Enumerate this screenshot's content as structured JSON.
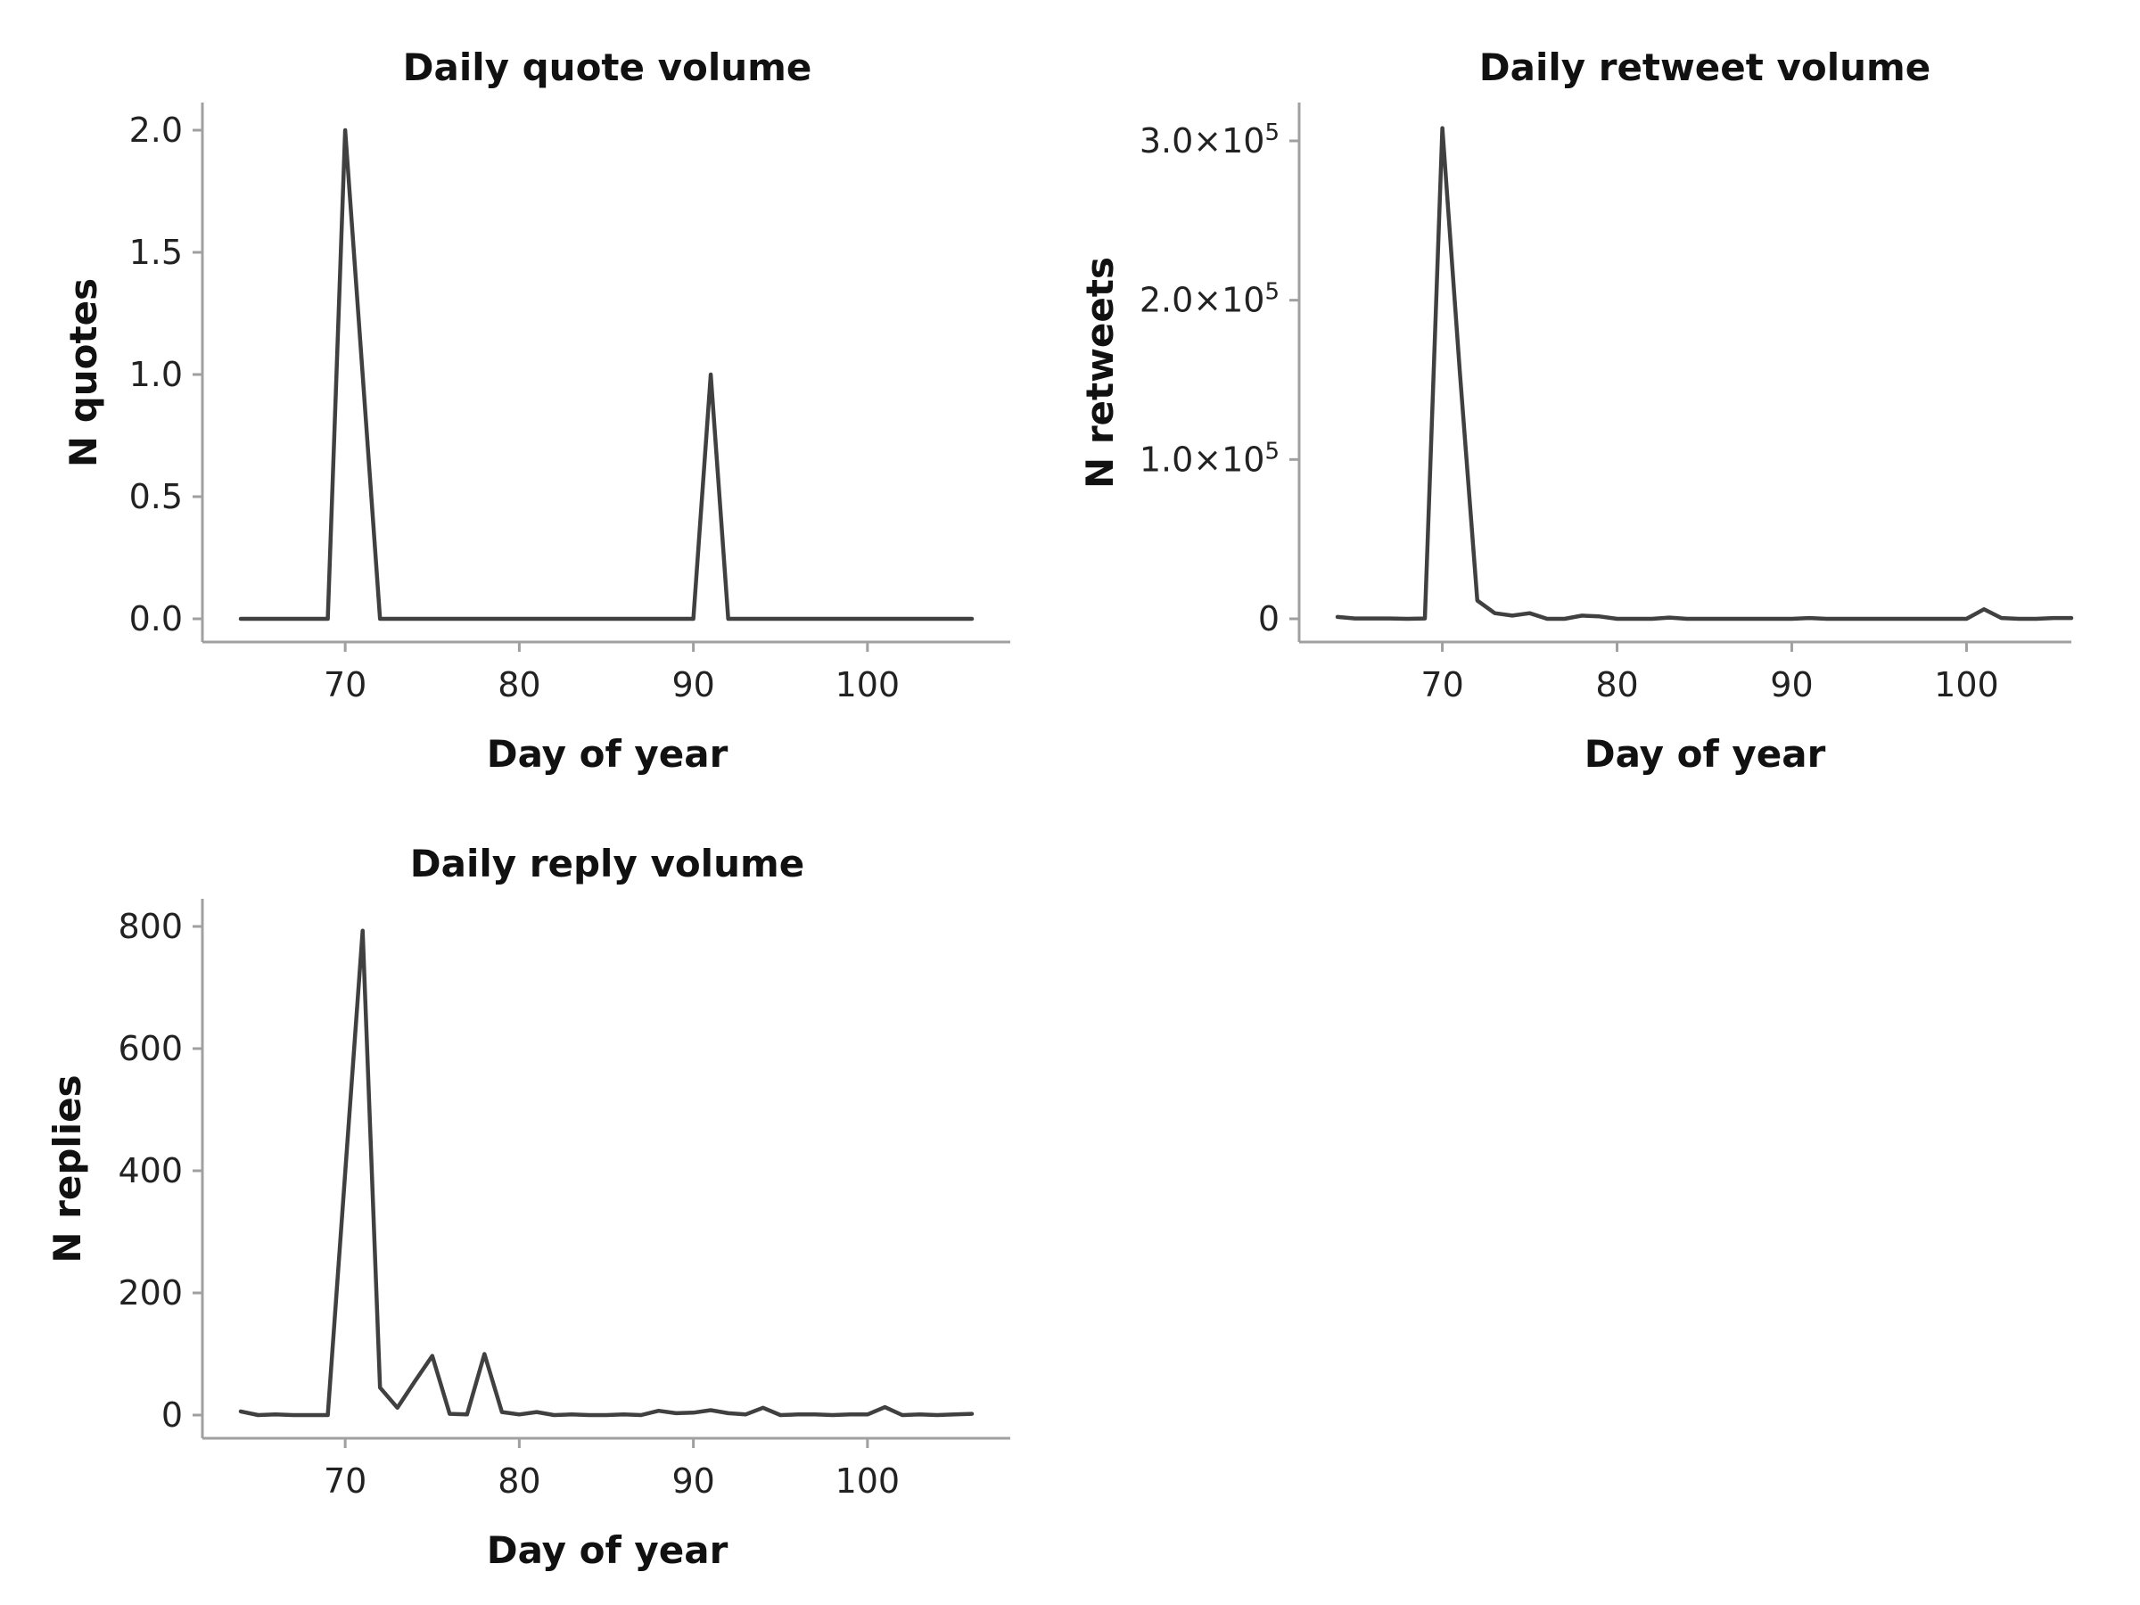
{
  "figure": {
    "background": "#ffffff",
    "line_color": "#404040",
    "axis_color": "#a0a0a0"
  },
  "chart_data": [
    {
      "id": "quotes",
      "type": "line",
      "title": "Daily quote volume",
      "xlabel": "Day of year",
      "ylabel": "N quotes",
      "xlim": [
        64,
        106
      ],
      "ylim": [
        0,
        2.0
      ],
      "xticks": [
        70,
        80,
        90,
        100
      ],
      "xtick_labels": [
        "70",
        "80",
        "90",
        "100"
      ],
      "yticks": [
        0,
        0.5,
        1.0,
        1.5,
        2.0
      ],
      "ytick_labels": [
        "0.0",
        "0.5",
        "1.0",
        "1.5",
        "2.0"
      ],
      "grid": false,
      "series": [
        {
          "x": [
            64,
            65,
            66,
            67,
            68,
            69,
            70,
            71,
            72,
            73,
            74,
            75,
            76,
            77,
            78,
            79,
            80,
            81,
            82,
            83,
            84,
            85,
            86,
            87,
            88,
            89,
            90,
            91,
            92,
            93,
            94,
            95,
            96,
            97,
            98,
            99,
            100,
            101,
            102,
            103,
            104,
            105,
            106
          ],
          "y": [
            0,
            0,
            0,
            0,
            0,
            0,
            2,
            1,
            0,
            0,
            0,
            0,
            0,
            0,
            0,
            0,
            0,
            0,
            0,
            0,
            0,
            0,
            0,
            0,
            0,
            0,
            0,
            1,
            0,
            0,
            0,
            0,
            0,
            0,
            0,
            0,
            0,
            0,
            0,
            0,
            0,
            0,
            0
          ]
        }
      ]
    },
    {
      "id": "retweets",
      "type": "line",
      "title": "Daily retweet volume",
      "xlabel": "Day of year",
      "ylabel": "N retweets",
      "xlim": [
        64,
        106
      ],
      "ylim": [
        0,
        300000
      ],
      "xticks": [
        70,
        80,
        90,
        100
      ],
      "xtick_labels": [
        "70",
        "80",
        "90",
        "100"
      ],
      "yticks": [
        0,
        100000,
        200000,
        300000
      ],
      "ytick_labels": [
        {
          "mantissa": "0",
          "exponent": ""
        },
        {
          "mantissa": "1.0×10",
          "exponent": "5"
        },
        {
          "mantissa": "2.0×10",
          "exponent": "5"
        },
        {
          "mantissa": "3.0×10",
          "exponent": "5"
        }
      ],
      "grid": false,
      "series": [
        {
          "x": [
            64,
            65,
            66,
            67,
            68,
            69,
            70,
            71,
            72,
            73,
            74,
            75,
            76,
            77,
            78,
            79,
            80,
            81,
            82,
            83,
            84,
            85,
            86,
            87,
            88,
            89,
            90,
            91,
            92,
            93,
            94,
            95,
            96,
            97,
            98,
            99,
            100,
            101,
            102,
            103,
            104,
            105,
            106
          ],
          "y": [
            1200,
            200,
            200,
            200,
            0,
            200,
            308000,
            155000,
            11500,
            3500,
            2000,
            3500,
            0,
            0,
            2000,
            1500,
            0,
            0,
            0,
            800,
            0,
            0,
            0,
            0,
            0,
            0,
            0,
            500,
            0,
            0,
            0,
            0,
            0,
            0,
            0,
            0,
            0,
            6000,
            500,
            0,
            0,
            500,
            500
          ]
        }
      ]
    },
    {
      "id": "replies",
      "type": "line",
      "title": "Daily reply volume",
      "xlabel": "Day of year",
      "ylabel": "N replies",
      "xlim": [
        64,
        106
      ],
      "ylim": [
        0,
        800
      ],
      "xticks": [
        70,
        80,
        90,
        100
      ],
      "xtick_labels": [
        "70",
        "80",
        "90",
        "100"
      ],
      "yticks": [
        0,
        200,
        400,
        600,
        800
      ],
      "ytick_labels": [
        "0",
        "200",
        "400",
        "600",
        "800"
      ],
      "grid": false,
      "series": [
        {
          "x": [
            64,
            65,
            66,
            67,
            68,
            69,
            70,
            71,
            72,
            73,
            74,
            75,
            76,
            77,
            78,
            79,
            80,
            81,
            82,
            83,
            84,
            85,
            86,
            87,
            88,
            89,
            90,
            91,
            92,
            93,
            94,
            95,
            96,
            97,
            98,
            99,
            100,
            101,
            102,
            103,
            104,
            105,
            106
          ],
          "y": [
            6,
            0,
            1,
            0,
            0,
            0,
            396,
            793,
            45,
            12,
            55,
            97,
            2,
            1,
            100,
            5,
            1,
            5,
            0,
            1,
            0,
            0,
            1,
            0,
            7,
            3,
            4,
            8,
            3,
            1,
            12,
            0,
            1,
            1,
            0,
            1,
            1,
            13,
            0,
            1,
            0,
            1,
            2
          ]
        }
      ]
    }
  ]
}
